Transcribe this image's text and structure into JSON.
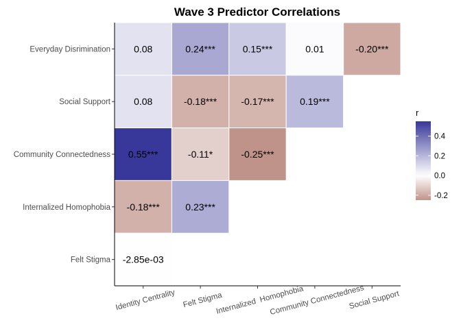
{
  "chart_data": {
    "type": "heatmap",
    "title": "Wave 3 Predictor Correlations",
    "x_categories": [
      "Identity Centrality",
      "Felt Stigma",
      "Internalized  Homophobia",
      "Community Connectedness",
      "Social Support"
    ],
    "y_categories": [
      "Everyday Disrimination",
      "Social Support",
      "Community Connectedness",
      "Internalized Homophobia",
      "Felt Stigma"
    ],
    "cells": [
      {
        "row": 0,
        "col": 0,
        "value": 0.08,
        "label": "0.08"
      },
      {
        "row": 0,
        "col": 1,
        "value": 0.24,
        "label": "0.24***"
      },
      {
        "row": 0,
        "col": 2,
        "value": 0.15,
        "label": "0.15***"
      },
      {
        "row": 0,
        "col": 3,
        "value": 0.01,
        "label": "0.01"
      },
      {
        "row": 0,
        "col": 4,
        "value": -0.2,
        "label": "-0.20***"
      },
      {
        "row": 1,
        "col": 0,
        "value": 0.08,
        "label": "0.08"
      },
      {
        "row": 1,
        "col": 1,
        "value": -0.18,
        "label": "-0.18***"
      },
      {
        "row": 1,
        "col": 2,
        "value": -0.17,
        "label": "-0.17***"
      },
      {
        "row": 1,
        "col": 3,
        "value": 0.19,
        "label": "0.19***"
      },
      {
        "row": 2,
        "col": 0,
        "value": 0.55,
        "label": "0.55***"
      },
      {
        "row": 2,
        "col": 1,
        "value": -0.11,
        "label": "-0.11*"
      },
      {
        "row": 2,
        "col": 2,
        "value": -0.25,
        "label": "-0.25***"
      },
      {
        "row": 3,
        "col": 0,
        "value": -0.18,
        "label": "-0.18***"
      },
      {
        "row": 3,
        "col": 1,
        "value": 0.23,
        "label": "0.23***"
      },
      {
        "row": 4,
        "col": 0,
        "value": -0.00285,
        "label": "-2.85e-03"
      }
    ],
    "legend": {
      "title": "r",
      "ticks": [
        "0.4",
        "0.2",
        "0.0",
        "-0.2"
      ],
      "tick_values": [
        0.4,
        0.2,
        0.0,
        -0.2
      ],
      "range": [
        -0.25,
        0.55
      ],
      "placement": "right"
    },
    "colors": {
      "low": "#c0938a",
      "mid": "#ffffff",
      "high": "#38389a"
    },
    "grid": false
  }
}
